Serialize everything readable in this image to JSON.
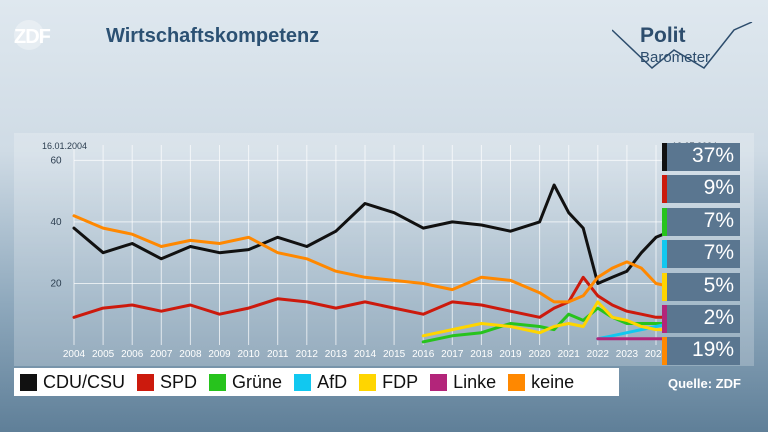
{
  "header": {
    "logo": "ZDF",
    "title": "Wirtschaftskompetenz"
  },
  "brand": {
    "line1": "Polit",
    "line2": "Barometer"
  },
  "chart_data": {
    "type": "line",
    "date_start": "16.01.2004",
    "date_end": "12.07.2024",
    "ylim": [
      0,
      65
    ],
    "y_ticks": [
      20,
      40,
      60
    ],
    "x_ticks": [
      "2004",
      "2005",
      "2006",
      "2007",
      "2008",
      "2009",
      "2010",
      "2011",
      "2012",
      "2013",
      "2014",
      "2015",
      "2016",
      "2017",
      "2018",
      "2019",
      "2020",
      "2021",
      "2022",
      "2023",
      "2024"
    ],
    "grid": true,
    "x": [
      2004.0,
      2005.0,
      2006.0,
      2007.0,
      2008.0,
      2009.0,
      2010.0,
      2011.0,
      2012.0,
      2013.0,
      2014.0,
      2015.0,
      2016.0,
      2017.0,
      2018.0,
      2019.0,
      2020.0,
      2020.5,
      2021.0,
      2021.5,
      2022.0,
      2022.5,
      2023.0,
      2023.5,
      2024.0,
      2024.5
    ],
    "series": [
      {
        "name": "CDU/CSU",
        "color": "#111111",
        "values": [
          38,
          30,
          33,
          28,
          32,
          30,
          31,
          35,
          32,
          37,
          46,
          43,
          38,
          40,
          39,
          37,
          40,
          52,
          43,
          38,
          20,
          22,
          24,
          30,
          35,
          37
        ]
      },
      {
        "name": "SPD",
        "color": "#cc1a0d",
        "values": [
          9,
          12,
          13,
          11,
          13,
          10,
          12,
          15,
          14,
          12,
          14,
          12,
          10,
          14,
          13,
          11,
          9,
          12,
          14,
          22,
          16,
          13,
          11,
          10,
          9,
          9
        ]
      },
      {
        "name": "Grüne",
        "color": "#27c31d",
        "values": [
          null,
          null,
          null,
          null,
          null,
          null,
          null,
          null,
          null,
          null,
          null,
          null,
          1,
          3,
          4,
          7,
          6,
          5,
          10,
          8,
          12,
          9,
          7,
          7,
          7,
          7
        ]
      },
      {
        "name": "AfD",
        "color": "#11c8f0",
        "values": [
          null,
          null,
          null,
          null,
          null,
          null,
          null,
          null,
          null,
          null,
          null,
          null,
          null,
          null,
          null,
          null,
          null,
          null,
          null,
          null,
          2,
          3,
          4,
          5,
          6,
          7
        ]
      },
      {
        "name": "FDP",
        "color": "#ffd500",
        "values": [
          null,
          null,
          null,
          null,
          null,
          null,
          null,
          null,
          null,
          null,
          null,
          null,
          3,
          5,
          7,
          6,
          4,
          6,
          7,
          6,
          14,
          9,
          8,
          6,
          5,
          5
        ]
      },
      {
        "name": "Linke",
        "color": "#b3257a",
        "values": [
          null,
          null,
          null,
          null,
          null,
          null,
          null,
          null,
          null,
          null,
          null,
          null,
          null,
          null,
          null,
          null,
          null,
          null,
          null,
          null,
          2,
          2,
          2,
          2,
          2,
          2
        ]
      },
      {
        "name": "keine",
        "color": "#ff8800",
        "values": [
          42,
          38,
          36,
          32,
          34,
          33,
          35,
          30,
          28,
          24,
          22,
          21,
          20,
          18,
          22,
          21,
          17,
          14,
          14,
          16,
          22,
          25,
          27,
          25,
          20,
          19
        ]
      }
    ],
    "latest": [
      {
        "name": "CDU/CSU",
        "color": "#111111",
        "label": "37%"
      },
      {
        "name": "SPD",
        "color": "#cc1a0d",
        "label": "9%"
      },
      {
        "name": "Grüne",
        "color": "#27c31d",
        "label": "7%"
      },
      {
        "name": "AfD",
        "color": "#11c8f0",
        "label": "7%"
      },
      {
        "name": "FDP",
        "color": "#ffd500",
        "label": "5%"
      },
      {
        "name": "Linke",
        "color": "#b3257a",
        "label": "2%"
      },
      {
        "name": "keine",
        "color": "#ff8800",
        "label": "19%"
      }
    ]
  },
  "legend": [
    {
      "label": "CDU/CSU",
      "color": "#111111"
    },
    {
      "label": "SPD",
      "color": "#cc1a0d"
    },
    {
      "label": "Grüne",
      "color": "#27c31d"
    },
    {
      "label": "AfD",
      "color": "#11c8f0"
    },
    {
      "label": "FDP",
      "color": "#ffd500"
    },
    {
      "label": "Linke",
      "color": "#b3257a"
    },
    {
      "label": "keine",
      "color": "#ff8800"
    }
  ],
  "source": "Quelle: ZDF"
}
